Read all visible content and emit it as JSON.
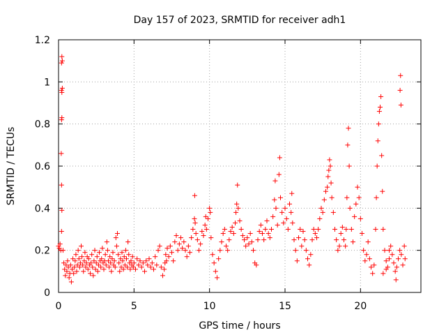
{
  "chart_data": {
    "type": "scatter",
    "title": "Day 157 of 2023, SRMTID for receiver adh1",
    "xlabel": "GPS time / hours",
    "ylabel": "SRMTID / TECUs",
    "xlim": [
      0,
      24
    ],
    "ylim": [
      0,
      1.2
    ],
    "xticks": [
      0,
      5,
      10,
      15,
      20
    ],
    "xtick_labels": [
      "0",
      "5",
      "10",
      "15",
      "20"
    ],
    "yticks": [
      0,
      0.2,
      0.4,
      0.6,
      0.8,
      1,
      1.2
    ],
    "ytick_labels": [
      "0",
      "0.2",
      "0.4",
      "0.6",
      "0.8",
      "1",
      "1.2"
    ],
    "grid": true,
    "marker": "+",
    "series": [
      {
        "name": "SRMTID",
        "color": "#ff0000",
        "points": [
          [
            0.0,
            0.22
          ],
          [
            0.05,
            0.21
          ],
          [
            0.1,
            0.23
          ],
          [
            0.15,
            0.2
          ],
          [
            0.2,
            1.09
          ],
          [
            0.22,
            1.12
          ],
          [
            0.25,
            1.1
          ],
          [
            0.2,
            0.96
          ],
          [
            0.22,
            0.95
          ],
          [
            0.25,
            0.97
          ],
          [
            0.2,
            0.82
          ],
          [
            0.22,
            0.83
          ],
          [
            0.18,
            0.66
          ],
          [
            0.2,
            0.51
          ],
          [
            0.22,
            0.39
          ],
          [
            0.2,
            0.29
          ],
          [
            0.3,
            0.2
          ],
          [
            0.35,
            0.14
          ],
          [
            0.4,
            0.11
          ],
          [
            0.45,
            0.08
          ],
          [
            0.5,
            0.13
          ],
          [
            0.55,
            0.1
          ],
          [
            0.6,
            0.15
          ],
          [
            0.65,
            0.12
          ],
          [
            0.7,
            0.07
          ],
          [
            0.75,
            0.09
          ],
          [
            0.8,
            0.13
          ],
          [
            0.85,
            0.05
          ],
          [
            0.9,
            0.11
          ],
          [
            0.95,
            0.16
          ],
          [
            1.0,
            0.09
          ],
          [
            1.05,
            0.12
          ],
          [
            1.1,
            0.15
          ],
          [
            1.15,
            0.18
          ],
          [
            1.2,
            0.1
          ],
          [
            1.25,
            0.13
          ],
          [
            1.3,
            0.2
          ],
          [
            1.35,
            0.16
          ],
          [
            1.4,
            0.12
          ],
          [
            1.45,
            0.14
          ],
          [
            1.5,
            0.22
          ],
          [
            1.55,
            0.17
          ],
          [
            1.6,
            0.13
          ],
          [
            1.65,
            0.1
          ],
          [
            1.7,
            0.15
          ],
          [
            1.75,
            0.19
          ],
          [
            1.8,
            0.12
          ],
          [
            1.85,
            0.14
          ],
          [
            1.9,
            0.17
          ],
          [
            1.95,
            0.11
          ],
          [
            2.0,
            0.16
          ],
          [
            2.05,
            0.13
          ],
          [
            2.1,
            0.09
          ],
          [
            2.15,
            0.14
          ],
          [
            2.2,
            0.18
          ],
          [
            2.25,
            0.12
          ],
          [
            2.3,
            0.08
          ],
          [
            2.35,
            0.15
          ],
          [
            2.4,
            0.2
          ],
          [
            2.45,
            0.11
          ],
          [
            2.5,
            0.14
          ],
          [
            2.55,
            0.17
          ],
          [
            2.6,
            0.1
          ],
          [
            2.65,
            0.13
          ],
          [
            2.7,
            0.19
          ],
          [
            2.75,
            0.15
          ],
          [
            2.8,
            0.12
          ],
          [
            2.85,
            0.16
          ],
          [
            2.9,
            0.21
          ],
          [
            2.95,
            0.14
          ],
          [
            3.0,
            0.11
          ],
          [
            3.05,
            0.15
          ],
          [
            3.1,
            0.18
          ],
          [
            3.15,
            0.13
          ],
          [
            3.2,
            0.24
          ],
          [
            3.25,
            0.2
          ],
          [
            3.3,
            0.15
          ],
          [
            3.35,
            0.12
          ],
          [
            3.4,
            0.17
          ],
          [
            3.45,
            0.14
          ],
          [
            3.5,
            0.1
          ],
          [
            3.55,
            0.16
          ],
          [
            3.6,
            0.19
          ],
          [
            3.65,
            0.13
          ],
          [
            3.7,
            0.15
          ],
          [
            3.75,
            0.12
          ],
          [
            3.8,
            0.26
          ],
          [
            3.85,
            0.22
          ],
          [
            3.9,
            0.28
          ],
          [
            3.95,
            0.18
          ],
          [
            4.0,
            0.14
          ],
          [
            4.05,
            0.1
          ],
          [
            4.1,
            0.16
          ],
          [
            4.15,
            0.12
          ],
          [
            4.2,
            0.19
          ],
          [
            4.25,
            0.15
          ],
          [
            4.3,
            0.11
          ],
          [
            4.35,
            0.17
          ],
          [
            4.4,
            0.13
          ],
          [
            4.45,
            0.2
          ],
          [
            4.5,
            0.16
          ],
          [
            4.55,
            0.12
          ],
          [
            4.6,
            0.24
          ],
          [
            4.65,
            0.18
          ],
          [
            4.7,
            0.14
          ],
          [
            4.75,
            0.11
          ],
          [
            4.8,
            0.15
          ],
          [
            4.85,
            0.13
          ],
          [
            4.9,
            0.17
          ],
          [
            4.95,
            0.12
          ],
          [
            5.0,
            0.14
          ],
          [
            5.1,
            0.11
          ],
          [
            5.2,
            0.16
          ],
          [
            5.3,
            0.13
          ],
          [
            5.4,
            0.15
          ],
          [
            5.5,
            0.12
          ],
          [
            5.6,
            0.14
          ],
          [
            5.7,
            0.1
          ],
          [
            5.8,
            0.15
          ],
          [
            5.9,
            0.13
          ],
          [
            6.0,
            0.16
          ],
          [
            6.1,
            0.12
          ],
          [
            6.2,
            0.14
          ],
          [
            6.3,
            0.11
          ],
          [
            6.4,
            0.17
          ],
          [
            6.5,
            0.13
          ],
          [
            6.6,
            0.2
          ],
          [
            6.7,
            0.22
          ],
          [
            6.8,
            0.12
          ],
          [
            6.9,
            0.08
          ],
          [
            7.0,
            0.11
          ],
          [
            7.05,
            0.14
          ],
          [
            7.1,
            0.18
          ],
          [
            7.15,
            0.15
          ],
          [
            7.2,
            0.21
          ],
          [
            7.3,
            0.17
          ],
          [
            7.4,
            0.22
          ],
          [
            7.5,
            0.19
          ],
          [
            7.6,
            0.15
          ],
          [
            7.7,
            0.24
          ],
          [
            7.8,
            0.27
          ],
          [
            7.9,
            0.2
          ],
          [
            8.0,
            0.23
          ],
          [
            8.1,
            0.26
          ],
          [
            8.2,
            0.21
          ],
          [
            8.3,
            0.24
          ],
          [
            8.4,
            0.2
          ],
          [
            8.5,
            0.17
          ],
          [
            8.6,
            0.22
          ],
          [
            8.7,
            0.19
          ],
          [
            8.8,
            0.26
          ],
          [
            8.9,
            0.3
          ],
          [
            9.0,
            0.35
          ],
          [
            9.02,
            0.46
          ],
          [
            9.05,
            0.33
          ],
          [
            9.1,
            0.28
          ],
          [
            9.2,
            0.25
          ],
          [
            9.3,
            0.2
          ],
          [
            9.4,
            0.23
          ],
          [
            9.5,
            0.29
          ],
          [
            9.6,
            0.27
          ],
          [
            9.7,
            0.32
          ],
          [
            9.75,
            0.36
          ],
          [
            9.8,
            0.3
          ],
          [
            9.9,
            0.35
          ],
          [
            10.0,
            0.4
          ],
          [
            10.05,
            0.38
          ],
          [
            10.1,
            0.26
          ],
          [
            10.2,
            0.18
          ],
          [
            10.3,
            0.14
          ],
          [
            10.4,
            0.1
          ],
          [
            10.5,
            0.07
          ],
          [
            10.6,
            0.16
          ],
          [
            10.7,
            0.2
          ],
          [
            10.8,
            0.24
          ],
          [
            10.9,
            0.28
          ],
          [
            11.0,
            0.3
          ],
          [
            11.1,
            0.22
          ],
          [
            11.2,
            0.2
          ],
          [
            11.3,
            0.25
          ],
          [
            11.4,
            0.29
          ],
          [
            11.5,
            0.31
          ],
          [
            11.6,
            0.28
          ],
          [
            11.7,
            0.33
          ],
          [
            11.75,
            0.38
          ],
          [
            11.8,
            0.42
          ],
          [
            11.85,
            0.51
          ],
          [
            11.9,
            0.4
          ],
          [
            12.0,
            0.34
          ],
          [
            12.1,
            0.3
          ],
          [
            12.2,
            0.27
          ],
          [
            12.3,
            0.25
          ],
          [
            12.4,
            0.22
          ],
          [
            12.5,
            0.26
          ],
          [
            12.6,
            0.23
          ],
          [
            12.7,
            0.28
          ],
          [
            12.8,
            0.24
          ],
          [
            12.9,
            0.2
          ],
          [
            13.0,
            0.14
          ],
          [
            13.1,
            0.13
          ],
          [
            13.2,
            0.25
          ],
          [
            13.3,
            0.29
          ],
          [
            13.4,
            0.32
          ],
          [
            13.5,
            0.28
          ],
          [
            13.6,
            0.25
          ],
          [
            13.7,
            0.3
          ],
          [
            13.8,
            0.34
          ],
          [
            13.9,
            0.28
          ],
          [
            14.0,
            0.26
          ],
          [
            14.1,
            0.3
          ],
          [
            14.2,
            0.36
          ],
          [
            14.3,
            0.44
          ],
          [
            14.35,
            0.53
          ],
          [
            14.4,
            0.4
          ],
          [
            14.5,
            0.32
          ],
          [
            14.6,
            0.56
          ],
          [
            14.65,
            0.64
          ],
          [
            14.7,
            0.45
          ],
          [
            14.8,
            0.38
          ],
          [
            14.9,
            0.33
          ],
          [
            15.0,
            0.4
          ],
          [
            15.1,
            0.35
          ],
          [
            15.2,
            0.3
          ],
          [
            15.3,
            0.42
          ],
          [
            15.4,
            0.38
          ],
          [
            15.45,
            0.47
          ],
          [
            15.5,
            0.33
          ],
          [
            15.6,
            0.25
          ],
          [
            15.7,
            0.2
          ],
          [
            15.8,
            0.15
          ],
          [
            15.9,
            0.26
          ],
          [
            16.0,
            0.3
          ],
          [
            16.1,
            0.22
          ],
          [
            16.2,
            0.29
          ],
          [
            16.3,
            0.25
          ],
          [
            16.4,
            0.2
          ],
          [
            16.5,
            0.16
          ],
          [
            16.6,
            0.13
          ],
          [
            16.7,
            0.18
          ],
          [
            16.8,
            0.25
          ],
          [
            16.9,
            0.3
          ],
          [
            17.0,
            0.28
          ],
          [
            17.1,
            0.26
          ],
          [
            17.2,
            0.3
          ],
          [
            17.3,
            0.35
          ],
          [
            17.4,
            0.4
          ],
          [
            17.5,
            0.38
          ],
          [
            17.6,
            0.44
          ],
          [
            17.7,
            0.48
          ],
          [
            17.8,
            0.5
          ],
          [
            17.85,
            0.55
          ],
          [
            17.9,
            0.58
          ],
          [
            17.95,
            0.63
          ],
          [
            18.0,
            0.6
          ],
          [
            18.05,
            0.52
          ],
          [
            18.1,
            0.45
          ],
          [
            18.2,
            0.38
          ],
          [
            18.3,
            0.3
          ],
          [
            18.4,
            0.25
          ],
          [
            18.5,
            0.2
          ],
          [
            18.6,
            0.22
          ],
          [
            18.7,
            0.28
          ],
          [
            18.8,
            0.31
          ],
          [
            18.9,
            0.25
          ],
          [
            19.0,
            0.22
          ],
          [
            19.05,
            0.3
          ],
          [
            19.1,
            0.45
          ],
          [
            19.15,
            0.7
          ],
          [
            19.2,
            0.78
          ],
          [
            19.25,
            0.6
          ],
          [
            19.3,
            0.4
          ],
          [
            19.4,
            0.3
          ],
          [
            19.5,
            0.24
          ],
          [
            19.6,
            0.36
          ],
          [
            19.7,
            0.42
          ],
          [
            19.8,
            0.5
          ],
          [
            19.9,
            0.45
          ],
          [
            20.0,
            0.35
          ],
          [
            20.1,
            0.28
          ],
          [
            20.2,
            0.2
          ],
          [
            20.3,
            0.15
          ],
          [
            20.4,
            0.18
          ],
          [
            20.5,
            0.24
          ],
          [
            20.6,
            0.16
          ],
          [
            20.7,
            0.12
          ],
          [
            20.8,
            0.09
          ],
          [
            20.9,
            0.13
          ],
          [
            21.0,
            0.3
          ],
          [
            21.05,
            0.45
          ],
          [
            21.1,
            0.6
          ],
          [
            21.15,
            0.72
          ],
          [
            21.2,
            0.8
          ],
          [
            21.25,
            0.86
          ],
          [
            21.3,
            0.88
          ],
          [
            21.35,
            0.93
          ],
          [
            21.4,
            0.65
          ],
          [
            21.45,
            0.48
          ],
          [
            21.5,
            0.3
          ],
          [
            21.6,
            0.2
          ],
          [
            21.7,
            0.15
          ],
          [
            21.8,
            0.12
          ],
          [
            21.9,
            0.16
          ],
          [
            22.0,
            0.22
          ],
          [
            22.1,
            0.18
          ],
          [
            22.2,
            0.14
          ],
          [
            22.3,
            0.1
          ],
          [
            22.35,
            0.06
          ],
          [
            22.4,
            0.12
          ],
          [
            22.5,
            0.16
          ],
          [
            22.6,
            0.2
          ],
          [
            22.62,
            0.96
          ],
          [
            22.65,
            1.03
          ],
          [
            22.68,
            0.89
          ],
          [
            22.7,
            0.18
          ],
          [
            22.8,
            0.13
          ],
          [
            22.9,
            0.22
          ],
          [
            22.95,
            0.16
          ],
          [
            21.9,
            0.2
          ],
          [
            21.7,
            0.11
          ],
          [
            21.5,
            0.09
          ]
        ]
      }
    ]
  }
}
